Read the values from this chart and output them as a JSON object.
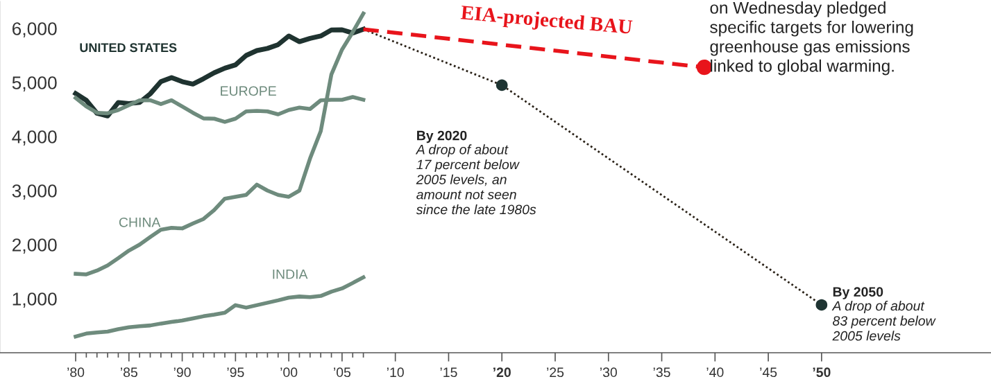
{
  "chart_data": {
    "type": "line",
    "x": [
      1980,
      1981,
      1982,
      1983,
      1984,
      1985,
      1986,
      1987,
      1988,
      1989,
      1990,
      1991,
      1992,
      1993,
      1994,
      1995,
      1996,
      1997,
      1998,
      1999,
      2000,
      2001,
      2002,
      2003,
      2004,
      2005,
      2006,
      2007
    ],
    "series": [
      {
        "name": "UNITED STATES",
        "color": "#1f3330",
        "values": [
          4795,
          4670,
          4430,
          4380,
          4630,
          4610,
          4630,
          4790,
          5015,
          5090,
          5015,
          4970,
          5070,
          5180,
          5265,
          5325,
          5500,
          5590,
          5630,
          5700,
          5860,
          5755,
          5815,
          5860,
          5970,
          5975,
          5915,
          5985
        ]
      },
      {
        "name": "EUROPE",
        "color": "#6e8b7d",
        "values": [
          4715,
          4555,
          4440,
          4430,
          4490,
          4580,
          4670,
          4670,
          4600,
          4670,
          4555,
          4440,
          4335,
          4330,
          4270,
          4330,
          4465,
          4475,
          4465,
          4410,
          4490,
          4535,
          4510,
          4670,
          4680,
          4680,
          4730,
          4680
        ]
      },
      {
        "name": "CHINA",
        "color": "#6e8b7d",
        "values": [
          1460,
          1450,
          1520,
          1615,
          1750,
          1890,
          2000,
          2140,
          2275,
          2310,
          2300,
          2390,
          2475,
          2640,
          2850,
          2885,
          2920,
          3110,
          3000,
          2920,
          2885,
          3000,
          3595,
          4100,
          5150,
          5610,
          5930,
          6275
        ]
      },
      {
        "name": "INDIA",
        "color": "#6e8b7d",
        "values": [
          300,
          355,
          375,
          390,
          435,
          470,
          490,
          505,
          540,
          570,
          595,
          635,
          675,
          705,
          740,
          880,
          835,
          880,
          925,
          970,
          1020,
          1040,
          1030,
          1050,
          1130,
          1190,
          1290,
          1395
        ]
      },
      {
        "type": "line",
        "line_style": "dotted",
        "color": "#2a2218",
        "x": [
          2007,
          2020,
          2050
        ],
        "values": [
          5985,
          4950,
          885
        ]
      },
      {
        "type": "scatter",
        "marker": "circle",
        "color": "#1e3432",
        "x": [
          2020,
          2050
        ],
        "values": [
          4950,
          885
        ]
      },
      {
        "type": "line",
        "line_style": "dashed",
        "name": "EIA-projected BAU",
        "color": "#e8141b",
        "x": [
          2007,
          2039
        ],
        "values": [
          5985,
          5280
        ]
      },
      {
        "type": "scatter",
        "marker": "circle",
        "color": "#e8141b",
        "x": [
          2039
        ],
        "values": [
          5280
        ]
      }
    ],
    "xlim": [
      1972.9,
      2065.9
    ],
    "xticks": [
      {
        "value": 1980,
        "label": "’80"
      },
      {
        "value": 1985,
        "label": "’85"
      },
      {
        "value": 1990,
        "label": "’90"
      },
      {
        "value": 1995,
        "label": "’95"
      },
      {
        "value": 2000,
        "label": "’00"
      },
      {
        "value": 2005,
        "label": "’05"
      },
      {
        "value": 2010,
        "label": "’10"
      },
      {
        "value": 2015,
        "label": "’15"
      },
      {
        "value": 2020,
        "label": "’20"
      },
      {
        "value": 2025,
        "label": "’25"
      },
      {
        "value": 2030,
        "label": "’30"
      },
      {
        "value": 2035,
        "label": "’35"
      },
      {
        "value": 2040,
        "label": "’40"
      },
      {
        "value": 2045,
        "label": "’45"
      },
      {
        "value": 2050,
        "label": "’50"
      },
      {
        "value": 1981,
        "label": null
      },
      {
        "value": 1982,
        "label": null
      },
      {
        "value": 1983,
        "label": null
      },
      {
        "value": 1984,
        "label": null
      },
      {
        "value": 1986,
        "label": null
      },
      {
        "value": 1987,
        "label": null
      },
      {
        "value": 1988,
        "label": null
      },
      {
        "value": 1989,
        "label": null
      },
      {
        "value": 1991,
        "label": null
      },
      {
        "value": 1992,
        "label": null
      },
      {
        "value": 1993,
        "label": null
      },
      {
        "value": 1994,
        "label": null
      },
      {
        "value": 1996,
        "label": null
      },
      {
        "value": 1997,
        "label": null
      },
      {
        "value": 1998,
        "label": null
      },
      {
        "value": 1999,
        "label": null
      },
      {
        "value": 2001,
        "label": null
      },
      {
        "value": 2002,
        "label": null
      },
      {
        "value": 2003,
        "label": null
      },
      {
        "value": 2004,
        "label": null
      },
      {
        "value": 2006,
        "label": null
      },
      {
        "value": 2007,
        "label": null
      }
    ],
    "ylim": [
      0,
      6500
    ],
    "yticks": [
      {
        "value": 1000,
        "label": "1,000"
      },
      {
        "value": 2000,
        "label": "2,000"
      },
      {
        "value": 3000,
        "label": "3,000"
      },
      {
        "value": 4000,
        "label": "4,000"
      },
      {
        "value": 5000,
        "label": "5,000"
      },
      {
        "value": 6000,
        "label": "6,000"
      }
    ],
    "annotations": [
      "By 2020",
      "A drop of about\n17 percent below\n2005 levels, an\namount not seen\nsince the late 1980s",
      "By 2050",
      "A drop of about\n83 percent below\n2005 levels",
      "on Wednesday pledged\nspecific targets for lowering\ngreenhouse gas emissions\nlinked to global warming."
    ]
  }
}
